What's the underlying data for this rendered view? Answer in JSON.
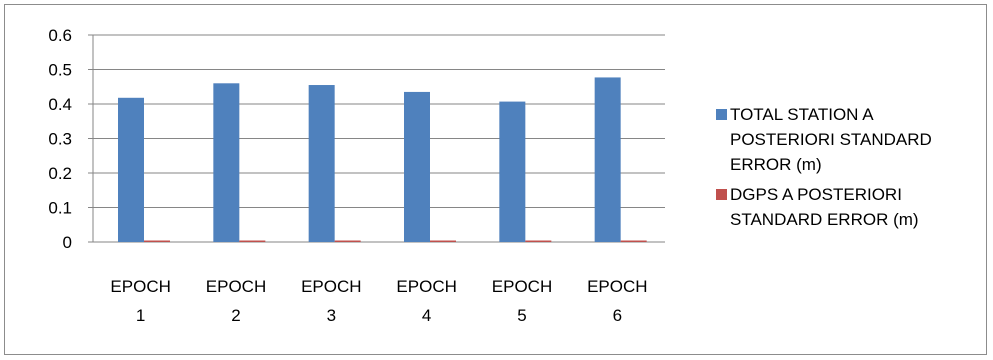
{
  "chart_data": {
    "type": "bar",
    "categories": [
      [
        "EPOCH",
        "1"
      ],
      [
        "EPOCH",
        "2"
      ],
      [
        "EPOCH",
        "3"
      ],
      [
        "EPOCH",
        "4"
      ],
      [
        "EPOCH",
        "5"
      ],
      [
        "EPOCH",
        "6"
      ]
    ],
    "series": [
      {
        "name": "TOTAL STATION A POSTERIORI STANDARD ERROR (m)",
        "legend_lines": [
          "TOTAL STATION A",
          "POSTERIORI STANDARD",
          "ERROR (m)"
        ],
        "color": "#4F81BD",
        "values": [
          0.418,
          0.46,
          0.455,
          0.435,
          0.407,
          0.477
        ]
      },
      {
        "name": "DGPS A POSTERIORI STANDARD ERROR (m)",
        "legend_lines": [
          "DGPS A POSTERIORI",
          "STANDARD ERROR (m)"
        ],
        "color": "#C0504D",
        "values": [
          0.001,
          0.001,
          0.001,
          0.001,
          0.001,
          0.004
        ]
      }
    ],
    "yticks": [
      "0",
      "0.1",
      "0.2",
      "0.3",
      "0.4",
      "0.5",
      "0.6"
    ],
    "ylim": [
      0,
      0.6
    ],
    "grid": true,
    "legend_position": "right",
    "title": "",
    "xlabel": "",
    "ylabel": ""
  }
}
